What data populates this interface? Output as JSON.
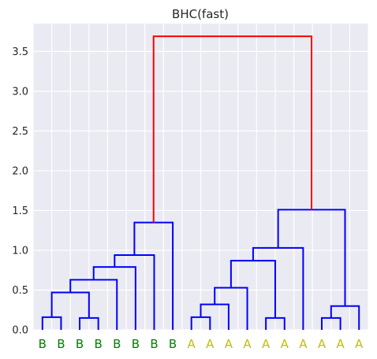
{
  "chart_data": {
    "type": "dendrogram",
    "title": "BHC(fast)",
    "ylim": [
      0,
      3.85
    ],
    "yticks": [
      0.0,
      0.5,
      1.0,
      1.5,
      2.0,
      2.5,
      3.0,
      3.5
    ],
    "ytick_labels": [
      "0.0",
      "0.5",
      "1.0",
      "1.5",
      "2.0",
      "2.5",
      "3.0",
      "3.5"
    ],
    "grid": true,
    "background": "#eaeaf2",
    "leaves": [
      "B",
      "B",
      "B",
      "B",
      "B",
      "B",
      "B",
      "B",
      "A",
      "A",
      "A",
      "A",
      "A",
      "A",
      "A",
      "A",
      "A",
      "A"
    ],
    "leaf_colors": {
      "B": "#008000",
      "A": "#bfbf00"
    },
    "link_colors": {
      "cluster": "#0000ff",
      "root": "#ff0000"
    },
    "merges": [
      {
        "left": 0,
        "right": 1,
        "height": 0.16
      },
      {
        "left": 2,
        "right": 3,
        "height": 0.15
      },
      {
        "left": 18,
        "right": 19,
        "height": 0.47
      },
      {
        "left": 20,
        "right": 4,
        "height": 0.63
      },
      {
        "left": 21,
        "right": 5,
        "height": 0.79
      },
      {
        "left": 22,
        "right": 6,
        "height": 0.94
      },
      {
        "left": 23,
        "right": 7,
        "height": 1.35
      },
      {
        "left": 8,
        "right": 9,
        "height": 0.16
      },
      {
        "left": 25,
        "right": 10,
        "height": 0.32
      },
      {
        "left": 26,
        "right": 11,
        "height": 0.53
      },
      {
        "left": 12,
        "right": 13,
        "height": 0.15
      },
      {
        "left": 27,
        "right": 28,
        "height": 0.87
      },
      {
        "left": 29,
        "right": 14,
        "height": 1.03
      },
      {
        "left": 15,
        "right": 16,
        "height": 0.15
      },
      {
        "left": 31,
        "right": 17,
        "height": 0.3
      },
      {
        "left": 30,
        "right": 32,
        "height": 1.51
      },
      {
        "left": 24,
        "right": 33,
        "height": 3.69
      }
    ]
  }
}
